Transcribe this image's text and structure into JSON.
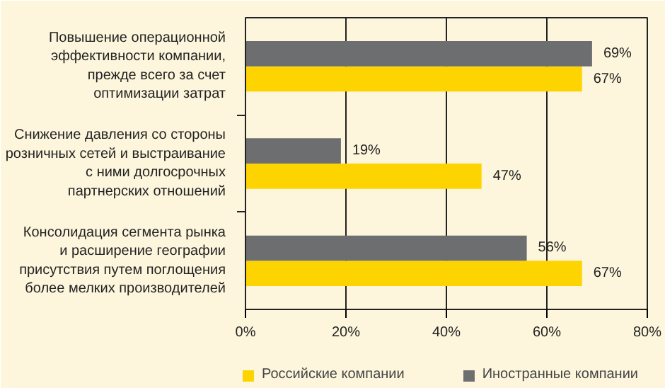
{
  "chart_data": {
    "type": "bar",
    "orientation": "horizontal",
    "categories": [
      "Повышение операционной\nэффективности компании,\nпрежде всего за счет\nоптимизации затрат",
      "Снижение давления со стороны\nрозничных сетей и выстраивание\nс ними долгосрочных\nпартнерских отношений",
      "Консолидация сегмента рынка\nи расширение географии\nприсутствия путем поглощения\nболее мелких производителей"
    ],
    "series": [
      {
        "name": "Российские компании",
        "color": "#fdd400",
        "values": [
          67,
          47,
          67
        ],
        "value_labels": [
          "67%",
          "47%",
          "67%"
        ]
      },
      {
        "name": "Иностранные компании",
        "color": "#6d6e70",
        "values": [
          69,
          19,
          56
        ],
        "value_labels": [
          "69%",
          "19%",
          "56%"
        ]
      }
    ],
    "xlim": [
      0,
      80
    ],
    "xticks": [
      {
        "value": 0,
        "label": "0%"
      },
      {
        "value": 20,
        "label": "20%"
      },
      {
        "value": 40,
        "label": "40%"
      },
      {
        "value": 60,
        "label": "60%"
      },
      {
        "value": 80,
        "label": "80%"
      }
    ],
    "grid": "x",
    "legend": "bottom"
  }
}
